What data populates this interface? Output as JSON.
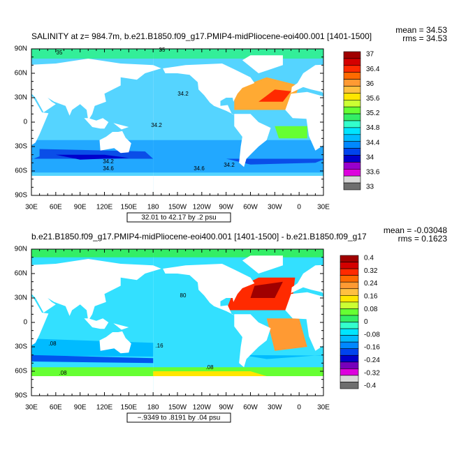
{
  "panels": [
    {
      "title": "SALINITY at z= 984.7m, b.e21.B1850.f09_g17.PMIP4-midPliocene-eoi400.001 [1401-1500]",
      "mean": "mean = 34.53",
      "rms": "rms = 34.53",
      "lat_labels": [
        "90N",
        "60N",
        "30N",
        "0",
        "30S",
        "60S",
        "90S"
      ],
      "lon_labels": [
        "30E",
        "60E",
        "90E",
        "120E",
        "150E",
        "180",
        "150W",
        "120W",
        "90W",
        "60W",
        "30W",
        "0",
        "30E"
      ],
      "contour_info": "32.01 to 42.17 by .2 psu",
      "contour_labels": [
        "35",
        "35",
        "34.2",
        "34.2",
        "34.2",
        "34.6",
        "34.6",
        "34.2"
      ],
      "colorbar": {
        "labels": [
          "37",
          "36.4",
          "36",
          "35.6",
          "35.2",
          "34.8",
          "34.4",
          "34",
          "33.6",
          "33"
        ],
        "colors": [
          "#a00000",
          "#d40000",
          "#ff2a00",
          "#ff6a00",
          "#ff9a33",
          "#ffc040",
          "#ffe600",
          "#ccff33",
          "#66ff33",
          "#33ee66",
          "#33ffcc",
          "#00e5ff",
          "#00bbff",
          "#0088ff",
          "#0044ee",
          "#0000cc",
          "#9900cc",
          "#dd00dd",
          "#d8d8d8",
          "#6e6e6e"
        ]
      }
    },
    {
      "title": "b.e21.B1850.f09_g17.PMIP4-midPliocene-eoi400.001 [1401-1500] - b.e21.B1850.f09_g17",
      "mean": "mean = -0.03048",
      "rms": "rms = 0.1623",
      "lat_labels": [
        "90N",
        "60N",
        "30N",
        "0",
        "30S",
        "60S",
        "90S"
      ],
      "lon_labels": [
        "30E",
        "60E",
        "90E",
        "120E",
        "150E",
        "180",
        "150W",
        "120W",
        "90W",
        "60W",
        "30W",
        "0",
        "30E"
      ],
      "contour_info": "−.9349 to .8191 by .04 psu",
      "contour_labels": [
        ".08",
        ".16",
        ".08",
        ".08",
        "80"
      ],
      "colorbar": {
        "labels": [
          "0.4",
          "0.32",
          "0.24",
          "0.16",
          "0.08",
          "0",
          "-0.08",
          "-0.16",
          "-0.24",
          "-0.32",
          "-0.4"
        ],
        "colors": [
          "#a00000",
          "#d40000",
          "#ff2a00",
          "#ff6a00",
          "#ff9a33",
          "#ffc040",
          "#ffe600",
          "#ccff33",
          "#66ff33",
          "#33ee66",
          "#33ffcc",
          "#00e5ff",
          "#00bbff",
          "#0088ff",
          "#0044ee",
          "#0000cc",
          "#7700bb",
          "#dd00dd",
          "#d8d8d8",
          "#6e6e6e"
        ]
      }
    }
  ]
}
